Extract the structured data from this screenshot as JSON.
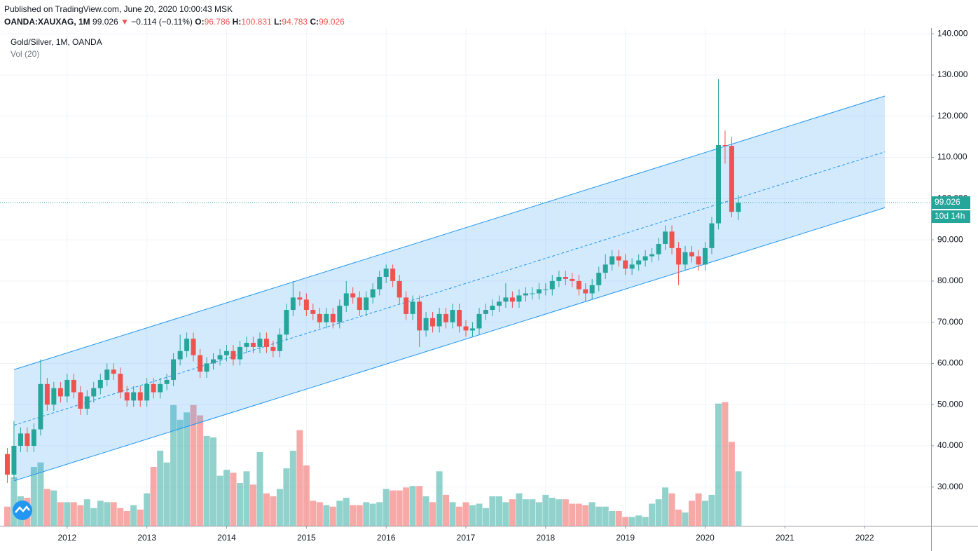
{
  "header": {
    "published": "Published on TradingView.com, June 20, 2020 10:00:43 MSK",
    "symbol": "OANDA:XAUXAG, 1M",
    "last": "99.026",
    "arrow": "▼",
    "change": "−0.114 (−0.11%)",
    "ohlc": [
      {
        "label": "O:",
        "value": "96.786"
      },
      {
        "label": "H:",
        "value": "100.831"
      },
      {
        "label": "L:",
        "value": "94.783"
      },
      {
        "label": "C:",
        "value": "99.026"
      }
    ]
  },
  "chart_data": {
    "type": "candlestick",
    "title": "Gold/Silver, 1M, OANDA",
    "volume_label": "Vol (20)",
    "up_color": "#26a69a",
    "down_color": "#ef5350",
    "channel_color": "#2196f3",
    "xlim": [
      2011.158,
      2022.833
    ],
    "xticks": [
      2012,
      2013,
      2014,
      2015,
      2016,
      2017,
      2018,
      2019,
      2020,
      2021,
      2022
    ],
    "ylim": [
      20.6,
      141.4
    ],
    "yticks": [
      {
        "value": 30,
        "label": "30.000"
      },
      {
        "value": 40,
        "label": "40.000"
      },
      {
        "value": 50,
        "label": "50.000"
      },
      {
        "value": 60,
        "label": "60.000"
      },
      {
        "value": 70,
        "label": "70.000"
      },
      {
        "value": 80,
        "label": "80.000"
      },
      {
        "value": 90,
        "label": "90.000"
      },
      {
        "value": 100,
        "label": "100.000"
      },
      {
        "value": 110,
        "label": "110.000"
      },
      {
        "value": 120,
        "label": "120.000"
      },
      {
        "value": 130,
        "label": "130.000"
      },
      {
        "value": 140,
        "label": "140.000"
      }
    ],
    "grid": true,
    "vlim": [
      0,
      100
    ],
    "x": [
      2011.25,
      2011.333,
      2011.417,
      2011.5,
      2011.583,
      2011.667,
      2011.75,
      2011.833,
      2011.917,
      2012,
      2012.083,
      2012.167,
      2012.25,
      2012.333,
      2012.417,
      2012.5,
      2012.583,
      2012.667,
      2012.75,
      2012.833,
      2012.917,
      2013,
      2013.083,
      2013.167,
      2013.25,
      2013.333,
      2013.417,
      2013.5,
      2013.583,
      2013.667,
      2013.75,
      2013.833,
      2013.917,
      2014,
      2014.083,
      2014.167,
      2014.25,
      2014.333,
      2014.417,
      2014.5,
      2014.583,
      2014.667,
      2014.75,
      2014.833,
      2014.917,
      2015,
      2015.083,
      2015.167,
      2015.25,
      2015.333,
      2015.417,
      2015.5,
      2015.583,
      2015.667,
      2015.75,
      2015.833,
      2015.917,
      2016,
      2016.083,
      2016.167,
      2016.25,
      2016.333,
      2016.417,
      2016.5,
      2016.583,
      2016.667,
      2016.75,
      2016.833,
      2016.917,
      2017,
      2017.083,
      2017.167,
      2017.25,
      2017.333,
      2017.417,
      2017.5,
      2017.583,
      2017.667,
      2017.75,
      2017.833,
      2017.917,
      2018,
      2018.083,
      2018.167,
      2018.25,
      2018.333,
      2018.417,
      2018.5,
      2018.583,
      2018.667,
      2018.75,
      2018.833,
      2018.917,
      2019,
      2019.083,
      2019.167,
      2019.25,
      2019.333,
      2019.417,
      2019.5,
      2019.583,
      2019.667,
      2019.75,
      2019.833,
      2019.917,
      2020,
      2020.083,
      2020.167,
      2020.25,
      2020.333,
      2020.417
    ],
    "open": [
      38,
      33,
      40,
      43,
      40,
      44,
      55,
      50,
      54,
      52,
      56,
      53,
      49,
      52,
      54,
      56,
      58.5,
      57.5,
      53,
      51,
      53,
      51,
      55,
      53,
      55,
      56,
      61,
      63,
      66,
      62,
      58,
      60,
      61,
      62,
      63,
      61,
      64,
      65,
      64,
      66,
      64,
      63,
      67,
      73,
      76,
      75.5,
      73,
      72,
      70,
      72,
      70,
      74,
      77,
      76,
      73,
      76,
      78,
      81,
      83,
      80,
      76,
      72,
      75,
      68,
      71,
      69,
      72,
      70,
      73,
      69,
      68,
      68.5,
      72,
      73,
      74,
      75,
      76,
      75,
      76.5,
      77,
      77,
      78,
      78,
      80,
      81,
      80.5,
      80,
      78,
      77,
      79,
      82,
      84,
      86,
      85,
      83,
      84,
      85,
      86,
      86.5,
      89,
      92,
      88,
      84,
      87,
      86,
      84,
      88,
      94,
      113,
      112.8,
      96.786
    ],
    "high": [
      39.5,
      46,
      44.5,
      44.5,
      45.5,
      61,
      56.5,
      55.5,
      55.5,
      57.5,
      57.5,
      54.5,
      53.5,
      55.5,
      57.5,
      60,
      60,
      59,
      54.5,
      54.5,
      54.5,
      56.5,
      56.5,
      56.5,
      57.5,
      62.5,
      67,
      67.5,
      67.5,
      63.5,
      61.5,
      62.5,
      63.5,
      64.5,
      64.5,
      65.5,
      66.5,
      66.5,
      67.5,
      67.5,
      65.5,
      68.5,
      74.5,
      80,
      77.5,
      77,
      74.5,
      73.5,
      73.5,
      73.5,
      75.5,
      80,
      78.5,
      77.5,
      77.5,
      79.5,
      82.5,
      84,
      84,
      81.5,
      77.5,
      76.5,
      76.5,
      72.5,
      72.5,
      73.5,
      73.5,
      74.5,
      74.5,
      70.5,
      70,
      73.5,
      74.5,
      75.5,
      76.5,
      79.5,
      77.5,
      78,
      78.5,
      78.5,
      79.5,
      79.5,
      81.5,
      82.5,
      82.5,
      82,
      81.5,
      79.5,
      80.5,
      83.5,
      86.5,
      87.5,
      87.5,
      86.5,
      85.5,
      86.5,
      87.5,
      88,
      90.5,
      93.5,
      93.5,
      89.5,
      88.5,
      88.5,
      87.5,
      89.5,
      95.5,
      129,
      116.5,
      115,
      100.831
    ],
    "low": [
      31,
      32,
      38.5,
      38.5,
      38.5,
      42.5,
      48.5,
      48.5,
      50.5,
      50.5,
      51.5,
      47.5,
      47.5,
      50.5,
      52.5,
      54.5,
      56,
      51.5,
      49.5,
      49.5,
      49.5,
      49.5,
      51.5,
      51.5,
      53.5,
      54.5,
      59.5,
      61.5,
      60.5,
      56.5,
      56.5,
      58.5,
      59.5,
      60.5,
      59.5,
      59.5,
      62.5,
      62.5,
      62.5,
      62.5,
      61.5,
      61.5,
      65.5,
      71.5,
      74,
      71.5,
      70.5,
      68.5,
      68.5,
      68.5,
      68.5,
      72.5,
      74.5,
      71.5,
      71.5,
      74.5,
      76.5,
      79.5,
      78.5,
      74.5,
      70.5,
      70.5,
      64,
      66.5,
      67.5,
      67.5,
      68.5,
      68.5,
      67.5,
      66.5,
      66.5,
      67,
      70.5,
      71.5,
      72.5,
      73.5,
      73.5,
      73.5,
      75,
      75.5,
      75.5,
      76.5,
      76.5,
      78.5,
      79,
      78.5,
      76.5,
      75,
      75.5,
      77.5,
      80.5,
      82.5,
      83.5,
      81.5,
      81.5,
      82.5,
      83.5,
      84.5,
      85,
      87.5,
      86.5,
      79,
      82.5,
      84.5,
      82.5,
      82.5,
      86.5,
      92.5,
      108.5,
      95.5,
      94.783
    ],
    "close": [
      33,
      40,
      43,
      40,
      44,
      55,
      50,
      54,
      52,
      56,
      53,
      49,
      52,
      54,
      56,
      58.5,
      57.5,
      53,
      51,
      53,
      51,
      55,
      53,
      55,
      56,
      61,
      63,
      66,
      62,
      58,
      60,
      61,
      62,
      63,
      61,
      64,
      65,
      64,
      66,
      64,
      63,
      67,
      73,
      76,
      75.5,
      73,
      72,
      70,
      72,
      70,
      74,
      77,
      76,
      73,
      76,
      78,
      81,
      83,
      80,
      76,
      72,
      75,
      68,
      71,
      69,
      72,
      70,
      73,
      69,
      68,
      68.5,
      72,
      73,
      74,
      75,
      76,
      75,
      76.5,
      77,
      77,
      78,
      78,
      80,
      81,
      80.5,
      80,
      78,
      77,
      79,
      82,
      84,
      86,
      85,
      83,
      84,
      85,
      86,
      86.5,
      89,
      92,
      88,
      84,
      87,
      86,
      84,
      88,
      94,
      113,
      112.8,
      96.786,
      99.026
    ],
    "volume": [
      13,
      33,
      20,
      19,
      40,
      43,
      25,
      24,
      16,
      16,
      16,
      14,
      18,
      12,
      17,
      16,
      16,
      12,
      10,
      14,
      11,
      22,
      40,
      51,
      43,
      82,
      72,
      77,
      82,
      75,
      61,
      60,
      34,
      38,
      36,
      29,
      37,
      28,
      50,
      22,
      20,
      25,
      39,
      51,
      65,
      41,
      17,
      16,
      14,
      13,
      17,
      19,
      14,
      14,
      16,
      15,
      16,
      25,
      24,
      24,
      26,
      27,
      27,
      20,
      16,
      37,
      21,
      16,
      13,
      16,
      14,
      15,
      12,
      20,
      20,
      16,
      18,
      22,
      18,
      18,
      16,
      21,
      19,
      18,
      18,
      15,
      15,
      14,
      16,
      13,
      13,
      10,
      10,
      6,
      6,
      7,
      6,
      15,
      18,
      26,
      22,
      11,
      9,
      17,
      22,
      17,
      21,
      83,
      84,
      57,
      37
    ],
    "channel": {
      "x": [
        2011.333,
        2022.254
      ],
      "upper": [
        58.5,
        124.9
      ],
      "middle": [
        45,
        111.35
      ],
      "lower": [
        31.5,
        97.8
      ]
    },
    "last_price": {
      "value": 99.026,
      "countdown": "10d 14h"
    }
  }
}
